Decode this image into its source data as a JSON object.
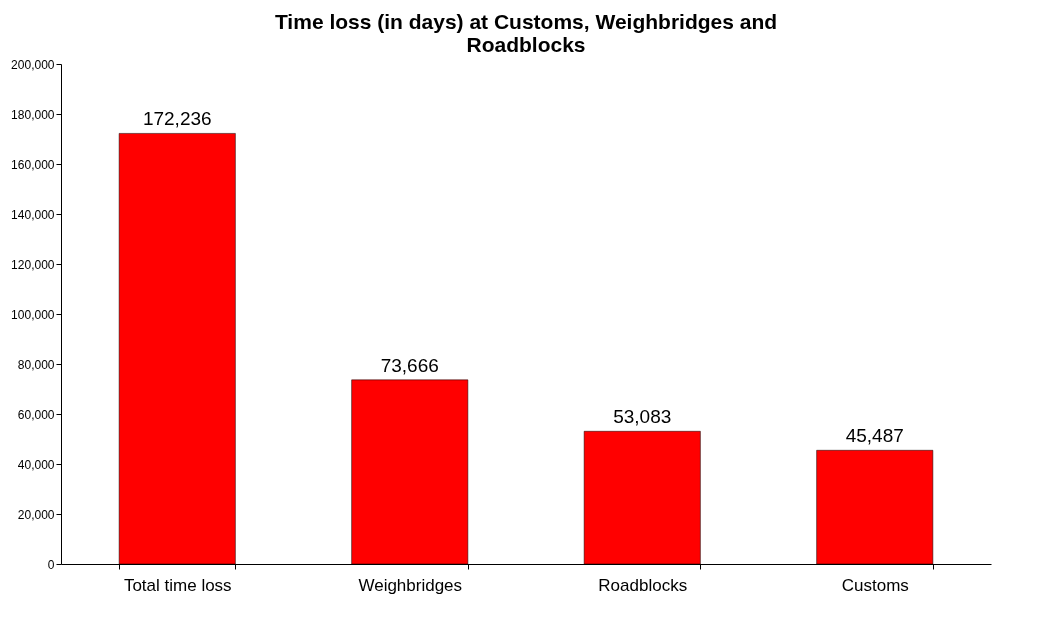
{
  "chart_data": {
    "type": "bar",
    "title": "Time loss (in days) at Customs, Weighbridges and Roadblocks",
    "categories": [
      "Total time loss",
      "Weighbridges",
      "Roadblocks",
      "Customs"
    ],
    "values": [
      172236,
      73666,
      53083,
      45487
    ],
    "color": "#ff0000",
    "value_labels": [
      "172,236",
      "73,666",
      "53,083",
      "45,487"
    ],
    "ylim": [
      0,
      200000
    ],
    "yticks": [
      0,
      {
        "value": 20000,
        "label": "20,000"
      },
      {
        "value": 40000,
        "label": "40,000"
      },
      {
        "value": 60000,
        "label": "60,000"
      },
      {
        "value": 80000,
        "label": "80,000"
      },
      {
        "value": 100000,
        "label": "100,000"
      },
      {
        "value": 120000,
        "label": "120,000"
      },
      {
        "value": 140000,
        "label": "140,000"
      },
      {
        "value": 160000,
        "label": "160,000"
      },
      {
        "value": 180000,
        "label": "180,000"
      },
      {
        "value": 200000,
        "label": "200,000"
      }
    ],
    "grid": false
  }
}
